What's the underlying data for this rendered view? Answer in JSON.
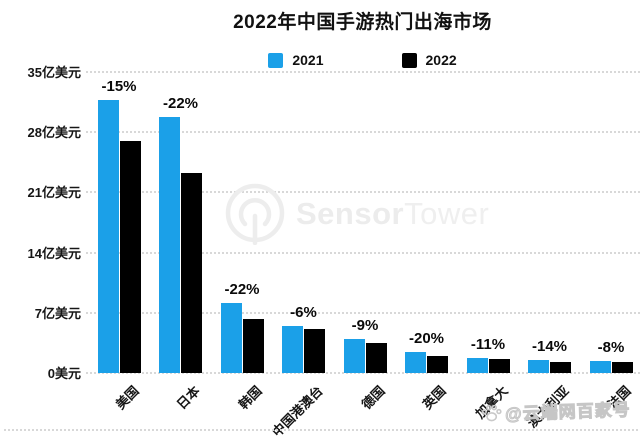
{
  "title": "2022年中国手游热门出海市场",
  "legend": {
    "items": [
      {
        "label": "2021",
        "color": "#1BA0E8"
      },
      {
        "label": "2022",
        "color": "#000000"
      }
    ]
  },
  "watermark": {
    "brand_bold": "Sensor",
    "brand_light": "Tower",
    "byline": "@云端网百家号"
  },
  "icons": {
    "logo": "sensortower-logo-icon",
    "byline_icon": "paw-icon"
  },
  "chart_data": {
    "type": "bar",
    "title": "2022年中国手游热门出海市场",
    "categories": [
      "美国",
      "日本",
      "韩国",
      "中国港澳台",
      "德国",
      "英国",
      "加拿大",
      "澳大利亚",
      "法国"
    ],
    "series": [
      {
        "name": "2021",
        "color": "#1BA0E8",
        "values": [
          31.8,
          29.8,
          8.1,
          5.5,
          3.9,
          2.5,
          1.8,
          1.5,
          1.4
        ]
      },
      {
        "name": "2022",
        "color": "#000000",
        "values": [
          27.0,
          23.2,
          6.3,
          5.1,
          3.5,
          2.0,
          1.6,
          1.3,
          1.25
        ]
      }
    ],
    "change_labels": [
      "-15%",
      "-22%",
      "-22%",
      "-6%",
      "-9%",
      "-20%",
      "-11%",
      "-14%",
      "-8%"
    ],
    "y_ticks": [
      "35亿美元",
      "28亿美元",
      "21亿美元",
      "14亿美元",
      "7亿美元",
      "0美元"
    ],
    "ylabel": "亿美元",
    "ylim": [
      0,
      35
    ],
    "grid": "horizontal-dotted",
    "legend_position": "top-center"
  }
}
